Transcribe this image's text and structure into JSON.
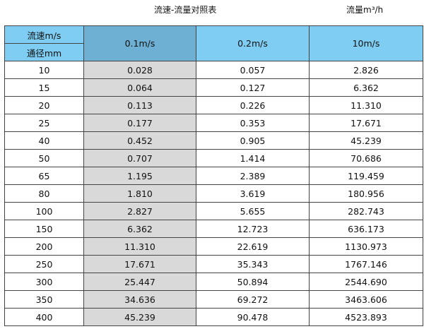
{
  "title": "流速-流量对照表",
  "unit_label": "流量m³/h",
  "header": {
    "velocity_label": "流速m/s",
    "diameter_label": "通径mm",
    "columns": [
      "0.1m/s",
      "0.2m/s",
      "10m/s"
    ]
  },
  "colors": {
    "header": "#7fcdf2",
    "header_highlight": "#6db0d3",
    "highlight_column": "#d9d9d9"
  },
  "rows": [
    [
      "10",
      "0.028",
      "0.057",
      "2.826"
    ],
    [
      "15",
      "0.064",
      "0.127",
      "6.362"
    ],
    [
      "20",
      "0.113",
      "0.226",
      "11.310"
    ],
    [
      "25",
      "0.177",
      "0.353",
      "17.671"
    ],
    [
      "40",
      "0.452",
      "0.905",
      "45.239"
    ],
    [
      "50",
      "0.707",
      "1.414",
      "70.686"
    ],
    [
      "65",
      "1.195",
      "2.389",
      "119.459"
    ],
    [
      "80",
      "1.810",
      "3.619",
      "180.956"
    ],
    [
      "100",
      "2.827",
      "5.655",
      "282.743"
    ],
    [
      "150",
      "6.362",
      "12.723",
      "636.173"
    ],
    [
      "200",
      "11.310",
      "22.619",
      "1130.973"
    ],
    [
      "250",
      "17.671",
      "35.343",
      "1767.146"
    ],
    [
      "300",
      "25.447",
      "50.894",
      "2544.690"
    ],
    [
      "350",
      "34.636",
      "69.272",
      "3463.606"
    ],
    [
      "400",
      "45.239",
      "90.478",
      "4523.893"
    ]
  ]
}
